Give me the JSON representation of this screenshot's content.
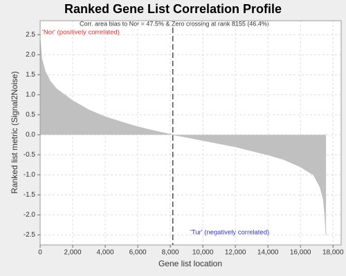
{
  "chart_data": {
    "type": "area",
    "title": "Ranked Gene List Correlation Profile",
    "annotation": "Corr. area bias to Nor = 47.5% & Zero crossing at rank 8155 (46.4%)",
    "positive_label": "'Nor' (positively correlated)",
    "negative_label": "'Tur' (negatively correlated)",
    "positive_color": "#e03030",
    "negative_color": "#3030c0",
    "x_label": "Gene list location",
    "y_label": "Ranked list metric (Signal2Noise)",
    "zero_crossing": 8155,
    "color": "#c0c0c0",
    "grid": true,
    "x": [
      0,
      100,
      300,
      600,
      1000,
      2000,
      3000,
      4000,
      5000,
      6000,
      7000,
      8155,
      9000,
      10000,
      11000,
      12000,
      13000,
      14000,
      15000,
      16000,
      16800,
      17200,
      17400,
      17500,
      17570
    ],
    "values": [
      2.4,
      1.9,
      1.6,
      1.35,
      1.15,
      0.85,
      0.62,
      0.45,
      0.32,
      0.2,
      0.1,
      0,
      -0.06,
      -0.14,
      -0.22,
      -0.3,
      -0.4,
      -0.5,
      -0.62,
      -0.8,
      -1.0,
      -1.3,
      -1.6,
      -2.0,
      -2.5
    ],
    "xlim": [
      0,
      18500
    ],
    "ylim": [
      -2.75,
      2.85
    ],
    "xticks": [
      0,
      {
        "value": 2000,
        "label": "2,000"
      },
      {
        "value": 4000,
        "label": "4,000"
      },
      {
        "value": 6000,
        "label": "6,000"
      },
      {
        "value": 8000,
        "label": "8,000"
      },
      {
        "value": 10000,
        "label": "10,000"
      },
      {
        "value": 12000,
        "label": "12,000"
      },
      {
        "value": 14000,
        "label": "14,000"
      },
      {
        "value": 16000,
        "label": "16,000"
      },
      {
        "value": 18000,
        "label": "18,000"
      }
    ],
    "yticks": [
      2.5,
      {
        "value": 2,
        "label": "2.0"
      },
      1.5,
      {
        "value": 1,
        "label": "1.0"
      },
      0.5,
      {
        "value": 0,
        "label": "0.0"
      },
      -0.5,
      {
        "value": -1,
        "label": "-1.0"
      },
      -1.5,
      {
        "value": -2,
        "label": "-2.0"
      },
      -2.5
    ]
  }
}
